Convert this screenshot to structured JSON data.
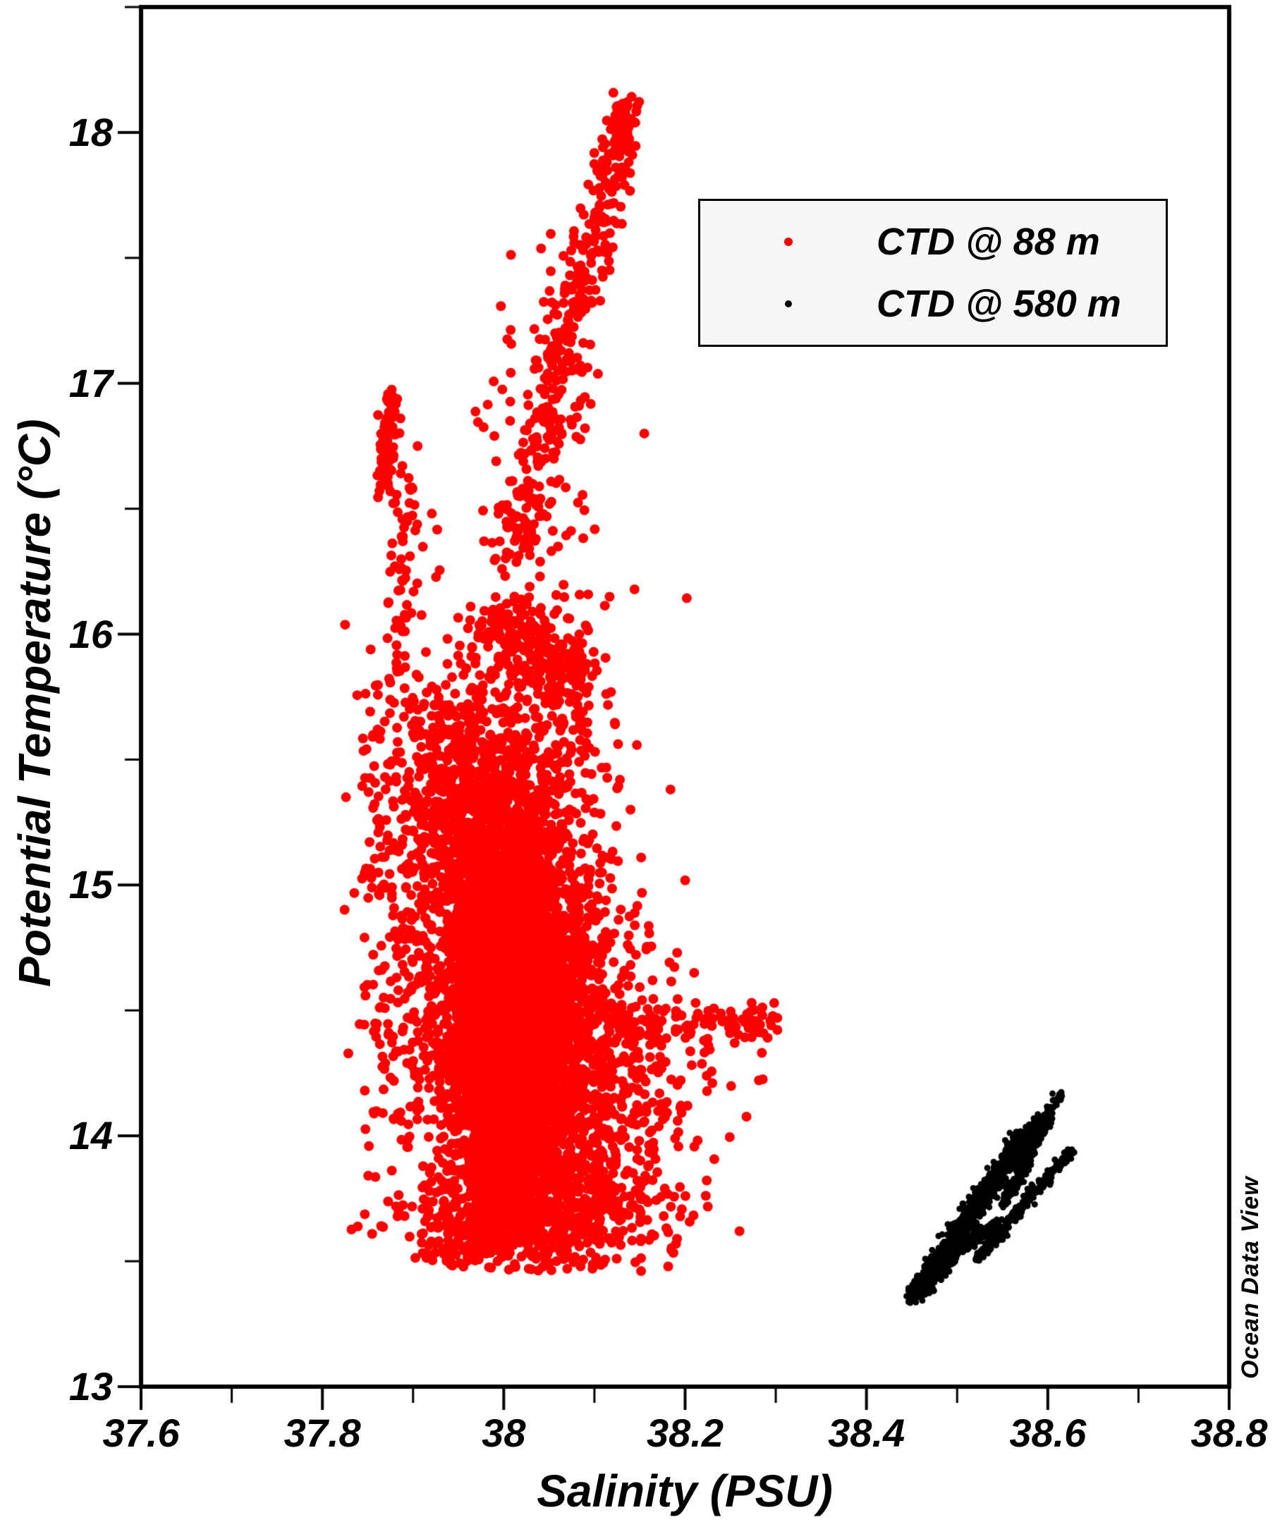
{
  "chart_data": {
    "type": "scatter",
    "title": "",
    "xlabel": "Salinity (PSU)",
    "ylabel": "Potential Temperature (°C)",
    "watermark": "Ocean Data View",
    "xlim": [
      37.6,
      38.8
    ],
    "ylim": [
      13,
      18.5
    ],
    "grid": false,
    "x_major_ticks": [
      37.6,
      37.8,
      38.0,
      38.2,
      38.4,
      38.6,
      38.8
    ],
    "x_tick_labels": [
      "37.6",
      "37.8",
      "38",
      "38.2",
      "38.4",
      "38.6",
      "38.8"
    ],
    "x_minor_ticks": [
      37.7,
      37.9,
      38.1,
      38.3,
      38.5,
      38.7
    ],
    "y_major_ticks": [
      13,
      14,
      15,
      16,
      17,
      18
    ],
    "y_tick_labels": [
      "13",
      "14",
      "15",
      "16",
      "17",
      "18"
    ],
    "y_minor_ticks": [
      13.5,
      14.5,
      15.5,
      16.5,
      17.5,
      18.5
    ],
    "colors": {
      "series_red": "#ff0000",
      "series_black": "#000000",
      "frame": "#000000",
      "legend_bg": "#f6f6f6",
      "legend_border": "#000000"
    },
    "legend": {
      "position": "top-right",
      "entries": [
        {
          "label": "CTD @ 88 m",
          "color": "#ff0000",
          "marker": "dot",
          "marker_px": 12
        },
        {
          "label": "CTD @ 580 m",
          "color": "#000000",
          "marker": "dot",
          "marker_px": 10
        }
      ]
    },
    "series": [
      {
        "name": "CTD @ 88 m",
        "color": "#ff0000",
        "marker_radius_px": 7,
        "approx_point_count": 9000,
        "sal_range": [
          37.82,
          38.31
        ],
        "temp_range": [
          13.46,
          18.16
        ],
        "gaussian_clusters": [
          {
            "s": 38.015,
            "t": 14.45,
            "ss": 0.048,
            "ts": 0.38,
            "n": 2200
          },
          {
            "s": 38.02,
            "t": 14.4,
            "ss": 0.028,
            "ts": 0.25,
            "n": 1600
          },
          {
            "s": 38.0,
            "t": 14.0,
            "ss": 0.022,
            "ts": 0.16,
            "n": 900
          },
          {
            "s": 37.985,
            "t": 14.75,
            "ss": 0.03,
            "ts": 0.3,
            "n": 700
          },
          {
            "s": 38.0,
            "t": 15.1,
            "ss": 0.05,
            "ts": 0.22,
            "n": 600
          },
          {
            "s": 37.96,
            "t": 15.45,
            "ss": 0.045,
            "ts": 0.18,
            "n": 350
          },
          {
            "s": 38.03,
            "t": 15.7,
            "ss": 0.05,
            "ts": 0.25,
            "n": 280
          },
          {
            "s": 38.01,
            "t": 16.0,
            "ss": 0.02,
            "ts": 0.07,
            "n": 90
          },
          {
            "s": 38.065,
            "t": 15.85,
            "ss": 0.018,
            "ts": 0.06,
            "n": 70
          },
          {
            "s": 37.885,
            "t": 14.9,
            "ss": 0.03,
            "ts": 0.5,
            "n": 230
          },
          {
            "s": 38.1,
            "t": 14.45,
            "ss": 0.04,
            "ts": 0.3,
            "n": 250
          },
          {
            "s": 38.03,
            "t": 13.68,
            "ss": 0.06,
            "ts": 0.1,
            "n": 380
          },
          {
            "s": 38.1,
            "t": 13.85,
            "ss": 0.05,
            "ts": 0.25,
            "n": 220
          },
          {
            "s": 37.97,
            "t": 13.6,
            "ss": 0.04,
            "ts": 0.08,
            "n": 150
          },
          {
            "s": 38.03,
            "t": 16.75,
            "ss": 0.035,
            "ts": 0.35,
            "n": 90
          },
          {
            "s": 38.17,
            "t": 14.05,
            "ss": 0.045,
            "ts": 0.3,
            "n": 90
          },
          {
            "s": 38.0,
            "t": 14.8,
            "ss": 0.09,
            "ts": 0.8,
            "n": 200
          }
        ],
        "band_segments": [
          {
            "s0": 38.01,
            "t0": 16.35,
            "s1": 38.135,
            "t1": 18.05,
            "js": 0.014,
            "jt": 0.1,
            "n": 330
          },
          {
            "s0": 38.125,
            "t0": 17.95,
            "s1": 38.135,
            "t1": 18.12,
            "js": 0.008,
            "jt": 0.05,
            "n": 45
          },
          {
            "s0": 37.868,
            "t0": 16.62,
            "s1": 37.876,
            "t1": 16.95,
            "js": 0.005,
            "jt": 0.05,
            "n": 80
          },
          {
            "s0": 37.88,
            "t0": 15.95,
            "s1": 37.895,
            "t1": 16.55,
            "js": 0.01,
            "jt": 0.15,
            "n": 60
          },
          {
            "s0": 38.12,
            "t0": 14.42,
            "s1": 38.295,
            "t1": 14.45,
            "js": 0.01,
            "jt": 0.045,
            "n": 110
          }
        ],
        "outlier_points": [
          [
            37.826,
            15.35
          ],
          [
            38.295,
            14.44
          ],
          [
            38.27,
            14.43
          ],
          [
            38.26,
            13.62
          ],
          [
            38.23,
            14.21
          ],
          [
            38.21,
            14.65
          ],
          [
            38.07,
            13.47
          ],
          [
            37.905,
            16.75
          ],
          [
            38.155,
            16.8
          ],
          [
            38.19,
            13.57
          ]
        ]
      },
      {
        "name": "CTD @ 580 m",
        "color": "#000000",
        "marker_radius_px": 4.5,
        "approx_point_count": 2000,
        "sal_range": [
          38.44,
          38.63
        ],
        "temp_range": [
          13.33,
          14.18
        ],
        "gaussian_clusters": [],
        "band_segments": [
          {
            "s0": 38.452,
            "t0": 13.36,
            "s1": 38.575,
            "t1": 14.02,
            "js": 0.005,
            "jt": 0.018,
            "n": 700
          },
          {
            "s0": 38.462,
            "t0": 13.4,
            "s1": 38.595,
            "t1": 14.08,
            "js": 0.004,
            "jt": 0.012,
            "n": 450
          },
          {
            "s0": 38.52,
            "t0": 13.5,
            "s1": 38.625,
            "t1": 13.94,
            "js": 0.003,
            "jt": 0.01,
            "n": 300
          },
          {
            "s0": 38.55,
            "t0": 13.72,
            "s1": 38.612,
            "t1": 14.16,
            "js": 0.003,
            "jt": 0.012,
            "n": 250
          },
          {
            "s0": 38.448,
            "t0": 13.34,
            "s1": 38.5,
            "t1": 13.56,
            "js": 0.006,
            "jt": 0.02,
            "n": 200
          },
          {
            "s0": 38.475,
            "t0": 13.5,
            "s1": 38.545,
            "t1": 13.65,
            "js": 0.004,
            "jt": 0.015,
            "n": 150
          }
        ],
        "outlier_points": []
      }
    ]
  }
}
